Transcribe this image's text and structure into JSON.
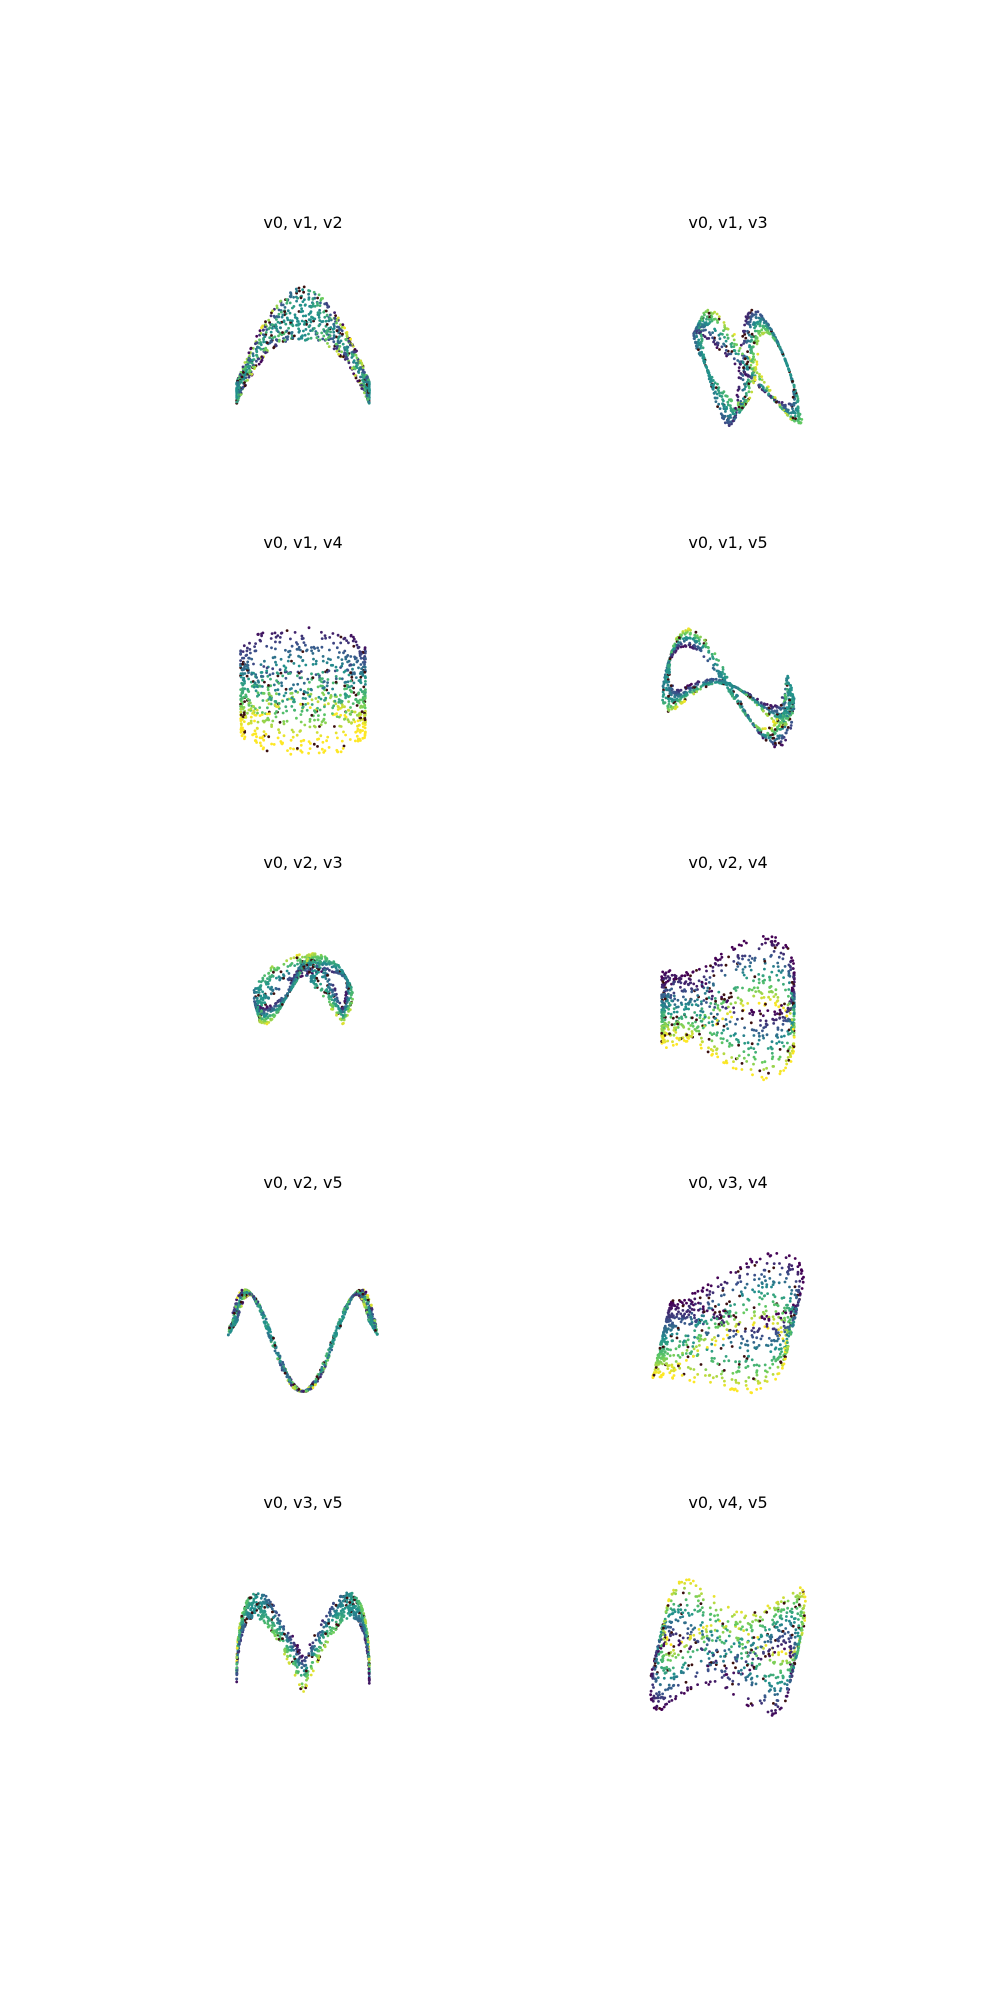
{
  "figure": {
    "background": "#ffffff",
    "colormap": "viridis",
    "colormap_stops": [
      "#440154",
      "#3b528b",
      "#21918c",
      "#5ec962",
      "#fde725"
    ],
    "accent_dots": "#3b0f0f"
  },
  "chart_data": [
    {
      "type": "scatter",
      "projection": "3d",
      "title": "v0, v1, v2",
      "axes_visible": false,
      "grid": false,
      "legend": "none",
      "surface": "arch-band"
    },
    {
      "type": "scatter",
      "projection": "3d",
      "title": "v0, v1, v3",
      "axes_visible": false,
      "grid": false,
      "legend": "none",
      "surface": "figure-eight-band"
    },
    {
      "type": "scatter",
      "projection": "3d",
      "title": "v0, v1, v4",
      "axes_visible": false,
      "grid": false,
      "legend": "none",
      "surface": "cylinder"
    },
    {
      "type": "scatter",
      "projection": "3d",
      "title": "v0, v1, v5",
      "axes_visible": false,
      "grid": false,
      "legend": "none",
      "surface": "saddle-band"
    },
    {
      "type": "scatter",
      "projection": "3d",
      "title": "v0, v2, v3",
      "axes_visible": false,
      "grid": false,
      "legend": "none",
      "surface": "twisted-loop-band"
    },
    {
      "type": "scatter",
      "projection": "3d",
      "title": "v0, v2, v4",
      "axes_visible": false,
      "grid": false,
      "legend": "none",
      "surface": "folded-cylinder"
    },
    {
      "type": "scatter",
      "projection": "3d",
      "title": "v0, v2, v5",
      "axes_visible": false,
      "grid": false,
      "legend": "none",
      "surface": "twisted-saddle-band"
    },
    {
      "type": "scatter",
      "projection": "3d",
      "title": "v0, v3, v4",
      "axes_visible": false,
      "grid": false,
      "legend": "none",
      "surface": "tilted-folded-cylinder"
    },
    {
      "type": "scatter",
      "projection": "3d",
      "title": "v0, v3, v5",
      "axes_visible": false,
      "grid": false,
      "legend": "none",
      "surface": "double-arch-band"
    },
    {
      "type": "scatter",
      "projection": "3d",
      "title": "v0, v4, v5",
      "axes_visible": false,
      "grid": false,
      "legend": "none",
      "surface": "wavy-cylinder"
    }
  ]
}
